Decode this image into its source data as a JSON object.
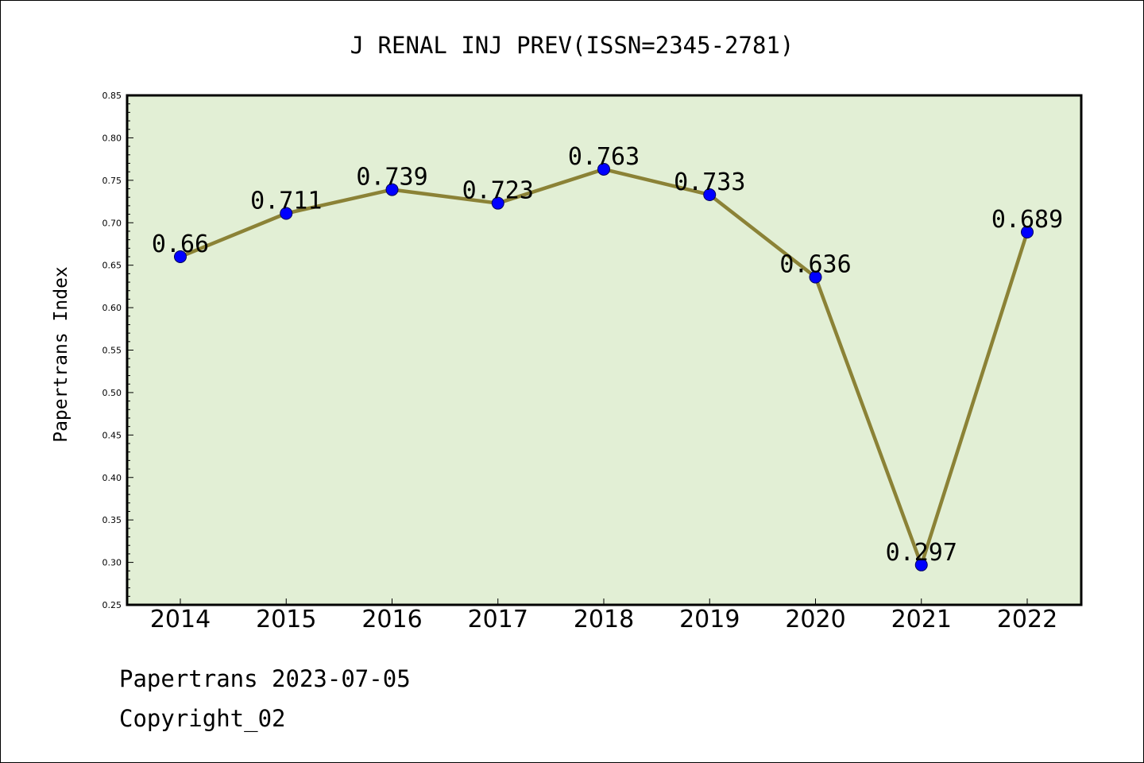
{
  "chart_data": {
    "type": "line",
    "title": "J RENAL INJ PREV(ISSN=2345-2781)",
    "xlabel": "",
    "ylabel": "Papertrans Index",
    "categories": [
      "2014",
      "2015",
      "2016",
      "2017",
      "2018",
      "2019",
      "2020",
      "2021",
      "2022"
    ],
    "values": [
      0.66,
      0.711,
      0.739,
      0.723,
      0.763,
      0.733,
      0.636,
      0.297,
      0.689
    ],
    "data_labels": [
      "0.66",
      "0.711",
      "0.739",
      "0.723",
      "0.763",
      "0.733",
      "0.636",
      "0.297",
      "0.689"
    ],
    "ylim": [
      0.25,
      0.85
    ],
    "yticks": [
      "0.25",
      "0.30",
      "0.35",
      "0.40",
      "0.45",
      "0.50",
      "0.55",
      "0.60",
      "0.65",
      "0.70",
      "0.75",
      "0.80",
      "0.85"
    ],
    "grid": false,
    "colors": {
      "plot_bg": "#e2efd5",
      "line": "#8b8236",
      "marker": "#0000ff"
    }
  },
  "footer": {
    "line1": "Papertrans 2023-07-05",
    "line2": "Copyright_02"
  }
}
